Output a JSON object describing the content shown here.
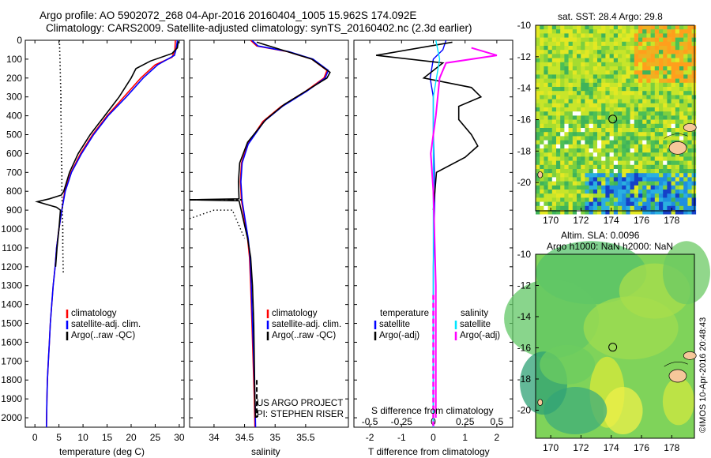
{
  "title_line1": "Argo profile: AO 5902072_268 04-Apr-2016 20160404_1005 15.962S 174.092E",
  "title_line2": "Climatology: CARS2009. Satellite-adjusted climatology: synTS_20160402.nc (2.3d earlier)",
  "credit": "US ARGO PROJECT",
  "pi": "PI: STEPHEN RISER",
  "timestamp": "©IMOS 10-Apr-2016 20:48:43",
  "sst_title": "sat. SST: 28.4  Argo: 29.8",
  "sla_title1": "Altim. SLA: 0.0096",
  "sla_title2": "Argo h1000: NaN h2000: NaN",
  "colors": {
    "climatology": "#ff0000",
    "satellite": "#0000ff",
    "argo": "#000000",
    "sat_sal": "#00e5ff",
    "argo_sal": "#ff00ff"
  },
  "legend_temp": [
    "climatology",
    "satellite-adj. clim.",
    "Argo(..raw -QC)"
  ],
  "legend_sal": [
    "climatology",
    "satellite-adj. clim.",
    "Argo(..raw -QC)"
  ],
  "legend_diff": {
    "temperature": "temperature",
    "salinity": "salinity",
    "satellite": "satellite",
    "argo": "Argo(-adj)"
  },
  "chart_data": [
    {
      "type": "line",
      "xlabel": "temperature (deg C)",
      "xlim": [
        -2,
        31
      ],
      "ylim": [
        0,
        2050
      ],
      "xticks": [
        0,
        5,
        10,
        15,
        20,
        25,
        30
      ],
      "yticks": [
        0,
        100,
        200,
        300,
        400,
        500,
        600,
        700,
        800,
        900,
        1000,
        1100,
        1200,
        1300,
        1400,
        1500,
        1600,
        1700,
        1800,
        1900,
        2000
      ],
      "series": [
        {
          "name": "climatology",
          "points": [
            [
              29.2,
              0
            ],
            [
              29.1,
              50
            ],
            [
              28.5,
              90
            ],
            [
              25,
              130
            ],
            [
              22,
              200
            ],
            [
              18.5,
              300
            ],
            [
              15,
              400
            ],
            [
              12,
              500
            ],
            [
              9.5,
              600
            ],
            [
              7.5,
              700
            ],
            [
              6.2,
              800
            ],
            [
              5.6,
              900
            ],
            [
              5,
              1000
            ],
            [
              4.5,
              1100
            ],
            [
              4.2,
              1200
            ],
            [
              3.8,
              1300
            ],
            [
              3.5,
              1400
            ],
            [
              3.2,
              1500
            ],
            [
              3,
              1600
            ],
            [
              2.8,
              1700
            ],
            [
              2.6,
              1800
            ],
            [
              2.5,
              1900
            ],
            [
              2.4,
              2050
            ]
          ]
        },
        {
          "name": "satellite-adj. clim.",
          "points": [
            [
              29.6,
              0
            ],
            [
              29.4,
              40
            ],
            [
              29,
              80
            ],
            [
              25.5,
              130
            ],
            [
              22.5,
              200
            ],
            [
              19,
              300
            ],
            [
              15.2,
              400
            ],
            [
              12.2,
              500
            ],
            [
              9.7,
              600
            ],
            [
              7.6,
              700
            ],
            [
              6.3,
              800
            ],
            [
              5.6,
              900
            ],
            [
              5,
              1000
            ],
            [
              4.5,
              1100
            ],
            [
              4.2,
              1200
            ],
            [
              3.8,
              1300
            ],
            [
              3.5,
              1400
            ],
            [
              3.2,
              1500
            ],
            [
              3,
              1600
            ],
            [
              2.8,
              1700
            ],
            [
              2.6,
              1800
            ],
            [
              2.5,
              1900
            ],
            [
              2.4,
              2050
            ]
          ]
        },
        {
          "name": "Argo(..raw -QC)",
          "points": [
            [
              29.8,
              5
            ],
            [
              29.6,
              40
            ],
            [
              28.5,
              70
            ],
            [
              24,
              110
            ],
            [
              21,
              150
            ],
            [
              20,
              200
            ],
            [
              17.5,
              300
            ],
            [
              14.5,
              400
            ],
            [
              11.5,
              500
            ],
            [
              9,
              600
            ],
            [
              7.2,
              700
            ],
            [
              6,
              800
            ],
            [
              5.5,
              820
            ],
            [
              3,
              840
            ],
            [
              0.5,
              855
            ],
            [
              2.5,
              870
            ],
            [
              4.5,
              885
            ],
            [
              5.3,
              900
            ],
            [
              5,
              1000
            ],
            [
              4.6,
              1100
            ],
            [
              4.3,
              1200
            ]
          ]
        },
        {
          "name": "Argo raw (dotted)",
          "points": [
            [
              5.1,
              0
            ],
            [
              5.2,
              100
            ],
            [
              5.3,
              200
            ],
            [
              5.4,
              300
            ],
            [
              5.4,
              400
            ],
            [
              5.5,
              500
            ],
            [
              5.5,
              600
            ],
            [
              5.6,
              700
            ],
            [
              5.6,
              800
            ],
            [
              5.7,
              900
            ],
            [
              5.8,
              1000
            ],
            [
              5.8,
              1100
            ],
            [
              5.9,
              1230
            ]
          ]
        }
      ]
    },
    {
      "type": "line",
      "xlabel": "salinity",
      "xlim": [
        33.6,
        36.2
      ],
      "ylim": [
        0,
        2050
      ],
      "xticks": [
        34,
        34.5,
        35,
        35.5
      ],
      "series": [
        {
          "name": "climatology",
          "points": [
            [
              34.6,
              0
            ],
            [
              34.7,
              30
            ],
            [
              35.2,
              60
            ],
            [
              35.6,
              100
            ],
            [
              35.85,
              160
            ],
            [
              35.8,
              200
            ],
            [
              35.5,
              270
            ],
            [
              35.1,
              350
            ],
            [
              34.8,
              430
            ],
            [
              34.55,
              550
            ],
            [
              34.45,
              650
            ],
            [
              34.43,
              750
            ],
            [
              34.45,
              850
            ],
            [
              34.5,
              950
            ],
            [
              34.55,
              1050
            ],
            [
              34.58,
              1150
            ],
            [
              34.6,
              1300
            ],
            [
              34.62,
              1500
            ],
            [
              34.64,
              1700
            ],
            [
              34.66,
              1900
            ],
            [
              34.67,
              2050
            ]
          ]
        },
        {
          "name": "satellite-adj. clim.",
          "points": [
            [
              34.62,
              0
            ],
            [
              34.72,
              30
            ],
            [
              35.22,
              60
            ],
            [
              35.62,
              100
            ],
            [
              35.87,
              160
            ],
            [
              35.82,
              200
            ],
            [
              35.52,
              270
            ],
            [
              35.12,
              350
            ],
            [
              34.82,
              430
            ],
            [
              34.56,
              550
            ],
            [
              34.46,
              650
            ],
            [
              34.44,
              750
            ],
            [
              34.46,
              850
            ],
            [
              34.51,
              950
            ],
            [
              34.56,
              1050
            ],
            [
              34.59,
              1150
            ],
            [
              34.61,
              1300
            ],
            [
              34.63,
              1500
            ],
            [
              34.65,
              1700
            ],
            [
              34.67,
              1900
            ],
            [
              34.68,
              2050
            ]
          ]
        },
        {
          "name": "Argo(..raw -QC)",
          "points": [
            [
              34.7,
              10
            ],
            [
              35.1,
              50
            ],
            [
              35.6,
              100
            ],
            [
              35.9,
              170
            ],
            [
              35.85,
              200
            ],
            [
              35.5,
              270
            ],
            [
              35.15,
              340
            ],
            [
              34.85,
              420
            ],
            [
              34.55,
              540
            ],
            [
              34.42,
              650
            ],
            [
              34.4,
              750
            ],
            [
              34.41,
              840
            ],
            [
              33.6,
              845
            ],
            [
              34.41,
              850
            ],
            [
              34.48,
              950
            ],
            [
              34.55,
              1050
            ],
            [
              34.6,
              1150
            ],
            [
              34.63,
              1300
            ],
            [
              34.65,
              1500
            ],
            [
              34.66,
              1700
            ],
            [
              34.67,
              1900
            ],
            [
              34.68,
              2000
            ]
          ]
        }
      ]
    },
    {
      "type": "line",
      "xlabel": "T difference from climatology",
      "x2label": "S difference from climatology",
      "xlim": [
        -2.5,
        2.5
      ],
      "ylim": [
        0,
        2050
      ],
      "xticks": [
        -2,
        -1,
        0,
        1,
        2
      ],
      "x2ticks": [
        -0.5,
        -0.25,
        0,
        0.25,
        0.5
      ],
      "series": [
        {
          "name": "temperature satellite",
          "points": [
            [
              0.4,
              0
            ],
            [
              0.3,
              50
            ],
            [
              0,
              100
            ],
            [
              -0.1,
              200
            ],
            [
              0,
              300
            ],
            [
              0,
              500
            ],
            [
              0.05,
              800
            ],
            [
              0,
              1200
            ],
            [
              0,
              2050
            ]
          ]
        },
        {
          "name": "temperature Argo(-adj)",
          "points": [
            [
              0.6,
              10
            ],
            [
              -1.8,
              80
            ],
            [
              0.3,
              120
            ],
            [
              -0.3,
              200
            ],
            [
              1.2,
              250
            ],
            [
              1.5,
              300
            ],
            [
              0.8,
              350
            ],
            [
              0.8,
              420
            ],
            [
              1.2,
              500
            ],
            [
              1.4,
              560
            ],
            [
              1,
              620
            ],
            [
              0.1,
              700
            ],
            [
              0.05,
              800
            ],
            [
              0,
              900
            ]
          ]
        },
        {
          "name": "salinity satellite",
          "points": [
            [
              0.02,
              0
            ],
            [
              0.05,
              100
            ],
            [
              0,
              300
            ],
            [
              0,
              1000
            ],
            [
              0,
              2050
            ]
          ]
        },
        {
          "name": "salinity Argo(-adj)",
          "points": [
            [
              0.3,
              40
            ],
            [
              0.5,
              80
            ],
            [
              0.1,
              120
            ],
            [
              0.05,
              200
            ],
            [
              0.02,
              400
            ],
            [
              -0.02,
              600
            ],
            [
              0,
              800
            ],
            [
              0.02,
              1300
            ],
            [
              0.02,
              1900
            ],
            [
              0.02,
              2000
            ]
          ]
        }
      ]
    },
    {
      "type": "heatmap",
      "title": "sat. SST: 28.4  Argo: 29.8",
      "xlim": [
        169,
        179.5
      ],
      "ylim": [
        -21.8,
        -10
      ],
      "xticks": [
        170,
        172,
        174,
        176,
        178
      ],
      "yticks": [
        -10,
        -12,
        -14,
        -16,
        -18,
        -20
      ]
    },
    {
      "type": "heatmap",
      "title": "Altim. SLA: 0.0096",
      "xlim": [
        169,
        179.5
      ],
      "ylim": [
        -21.8,
        -10
      ],
      "xticks": [
        170,
        172,
        174,
        176,
        178
      ],
      "yticks": [
        -10,
        -12,
        -14,
        -16,
        -18,
        -20
      ]
    }
  ]
}
